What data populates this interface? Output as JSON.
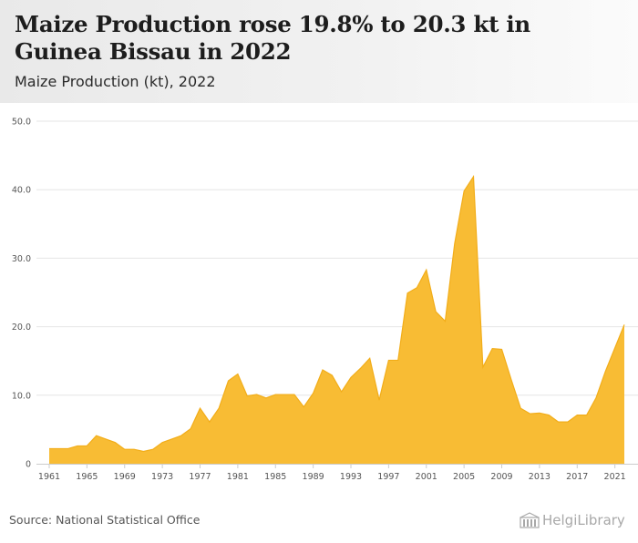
{
  "header": {
    "title": "Maize Production rose 19.8% to 20.3 kt in Guinea Bissau in 2022",
    "subtitle": "Maize Production (kt), 2022"
  },
  "footer": {
    "source": "Source: National Statistical Office",
    "logo_text": "HelgiLibrary",
    "logo_icon": "building-icon"
  },
  "colors": {
    "area_fill": "#f8bc34",
    "area_stroke": "#f2ad19",
    "grid": "#e6e6e6",
    "axis": "#cccccc"
  },
  "chart_data": {
    "type": "area",
    "title": "Maize Production (kt), 2022",
    "xlabel": "",
    "ylabel": "",
    "ylim": [
      0,
      50
    ],
    "xlim": [
      1961,
      2022
    ],
    "y_ticks": [
      "0",
      "10.0",
      "20.0",
      "30.0",
      "40.0",
      "50.0"
    ],
    "x_ticks": [
      "1961",
      "1965",
      "1969",
      "1973",
      "1977",
      "1981",
      "1985",
      "1989",
      "1993",
      "1997",
      "2001",
      "2005",
      "2009",
      "2013",
      "2017",
      "2021"
    ],
    "grid": true,
    "x": [
      1961,
      1962,
      1963,
      1964,
      1965,
      1966,
      1967,
      1968,
      1969,
      1970,
      1971,
      1972,
      1973,
      1974,
      1975,
      1976,
      1977,
      1978,
      1979,
      1980,
      1981,
      1982,
      1983,
      1984,
      1985,
      1986,
      1987,
      1988,
      1989,
      1990,
      1991,
      1992,
      1993,
      1994,
      1995,
      1996,
      1997,
      1998,
      1999,
      2000,
      2001,
      2002,
      2003,
      2004,
      2005,
      2006,
      2007,
      2008,
      2009,
      2010,
      2011,
      2012,
      2013,
      2014,
      2015,
      2016,
      2017,
      2018,
      2019,
      2020,
      2021,
      2022
    ],
    "values": [
      2.2,
      2.2,
      2.2,
      2.6,
      2.6,
      4.1,
      3.6,
      3.1,
      2.1,
      2.1,
      1.8,
      2.1,
      3.1,
      3.6,
      4.1,
      5.1,
      8.1,
      6.1,
      8.1,
      12.1,
      13.1,
      9.9,
      10.1,
      9.6,
      10.1,
      10.1,
      10.1,
      8.3,
      10.3,
      13.7,
      12.9,
      10.5,
      12.6,
      13.9,
      15.4,
      9.3,
      15.1,
      15.1,
      24.9,
      25.7,
      28.3,
      22.2,
      20.8,
      32.1,
      39.8,
      41.9,
      14.1,
      16.8,
      16.7,
      12.3,
      8.1,
      7.3,
      7.4,
      7.1,
      6.1,
      6.1,
      7.1,
      7.1,
      9.6,
      13.5,
      16.9,
      20.3
    ]
  }
}
